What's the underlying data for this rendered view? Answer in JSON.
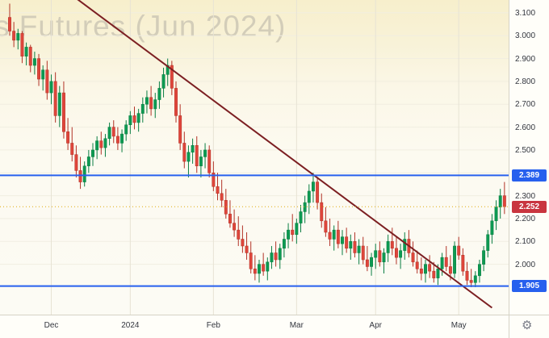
{
  "chart_data": {
    "type": "candlestick",
    "title": "s Futures (Jun 2024)",
    "y_range": [
      1.78,
      3.156
    ],
    "layout": {
      "x_offset": 12,
      "x_step": 5.15,
      "candle_width": 3.4,
      "grid": "on",
      "price_axis_side": "right"
    },
    "x_axis": {
      "ticks": [
        {
          "label": "Dec",
          "index": 10
        },
        {
          "label": "2024",
          "index": 29
        },
        {
          "label": "Feb",
          "index": 49
        },
        {
          "label": "Mar",
          "index": 69
        },
        {
          "label": "Apr",
          "index": 88
        },
        {
          "label": "May",
          "index": 108
        }
      ]
    },
    "y_axis": {
      "ticks": [
        {
          "label": "3.100",
          "value": 3.1
        },
        {
          "label": "3.000",
          "value": 3.0
        },
        {
          "label": "2.900",
          "value": 2.9
        },
        {
          "label": "2.800",
          "value": 2.8
        },
        {
          "label": "2.700",
          "value": 2.7
        },
        {
          "label": "2.600",
          "value": 2.6
        },
        {
          "label": "2.500",
          "value": 2.5
        },
        {
          "label": "2.400",
          "value": 2.4
        },
        {
          "label": "2.300",
          "value": 2.3
        },
        {
          "label": "2.200",
          "value": 2.2
        },
        {
          "label": "2.100",
          "value": 2.1
        },
        {
          "label": "2.000",
          "value": 2.0
        }
      ]
    },
    "levels": [
      {
        "name": "resistance",
        "label": "2.389",
        "value": 2.389
      },
      {
        "name": "support",
        "label": "1.905",
        "value": 1.905
      }
    ],
    "current_price": {
      "label": "2.252",
      "value": 2.252
    },
    "trendline": {
      "from": {
        "index": 15.5,
        "price": 3.17
      },
      "to": {
        "index": 116,
        "price": 1.81
      }
    },
    "candles": [
      [
        3.08,
        3.14,
        3.0,
        3.02
      ],
      [
        3.02,
        3.06,
        2.95,
        2.98
      ],
      [
        2.98,
        3.03,
        2.94,
        3.01
      ],
      [
        3.01,
        3.02,
        2.88,
        2.91
      ],
      [
        2.91,
        2.97,
        2.87,
        2.95
      ],
      [
        2.95,
        2.96,
        2.84,
        2.87
      ],
      [
        2.87,
        2.93,
        2.83,
        2.9
      ],
      [
        2.9,
        2.92,
        2.78,
        2.81
      ],
      [
        2.81,
        2.87,
        2.76,
        2.85
      ],
      [
        2.85,
        2.89,
        2.72,
        2.75
      ],
      [
        2.75,
        2.83,
        2.7,
        2.8
      ],
      [
        2.8,
        2.84,
        2.62,
        2.65
      ],
      [
        2.65,
        2.78,
        2.6,
        2.75
      ],
      [
        2.75,
        2.8,
        2.55,
        2.58
      ],
      [
        2.58,
        2.64,
        2.5,
        2.53
      ],
      [
        2.53,
        2.6,
        2.45,
        2.48
      ],
      [
        2.48,
        2.52,
        2.38,
        2.41
      ],
      [
        2.41,
        2.47,
        2.33,
        2.36
      ],
      [
        2.36,
        2.45,
        2.34,
        2.43
      ],
      [
        2.43,
        2.5,
        2.4,
        2.47
      ],
      [
        2.47,
        2.53,
        2.43,
        2.5
      ],
      [
        2.5,
        2.56,
        2.46,
        2.54
      ],
      [
        2.54,
        2.58,
        2.48,
        2.51
      ],
      [
        2.51,
        2.57,
        2.47,
        2.55
      ],
      [
        2.55,
        2.62,
        2.52,
        2.6
      ],
      [
        2.6,
        2.63,
        2.53,
        2.56
      ],
      [
        2.56,
        2.6,
        2.5,
        2.53
      ],
      [
        2.53,
        2.59,
        2.49,
        2.57
      ],
      [
        2.57,
        2.63,
        2.54,
        2.61
      ],
      [
        2.61,
        2.67,
        2.57,
        2.65
      ],
      [
        2.65,
        2.69,
        2.59,
        2.62
      ],
      [
        2.62,
        2.68,
        2.58,
        2.66
      ],
      [
        2.66,
        2.73,
        2.62,
        2.7
      ],
      [
        2.7,
        2.76,
        2.66,
        2.73
      ],
      [
        2.73,
        2.78,
        2.65,
        2.68
      ],
      [
        2.68,
        2.75,
        2.64,
        2.72
      ],
      [
        2.72,
        2.8,
        2.68,
        2.77
      ],
      [
        2.77,
        2.86,
        2.73,
        2.83
      ],
      [
        2.83,
        2.9,
        2.78,
        2.87
      ],
      [
        2.87,
        2.89,
        2.74,
        2.77
      ],
      [
        2.77,
        2.8,
        2.62,
        2.65
      ],
      [
        2.65,
        2.7,
        2.5,
        2.53
      ],
      [
        2.53,
        2.58,
        2.42,
        2.45
      ],
      [
        2.45,
        2.52,
        2.38,
        2.49
      ],
      [
        2.49,
        2.55,
        2.44,
        2.52
      ],
      [
        2.52,
        2.56,
        2.4,
        2.43
      ],
      [
        2.43,
        2.5,
        2.38,
        2.47
      ],
      [
        2.47,
        2.53,
        2.42,
        2.5
      ],
      [
        2.5,
        2.52,
        2.38,
        2.4
      ],
      [
        2.4,
        2.45,
        2.32,
        2.34
      ],
      [
        2.34,
        2.4,
        2.28,
        2.31
      ],
      [
        2.31,
        2.37,
        2.25,
        2.28
      ],
      [
        2.28,
        2.33,
        2.2,
        2.22
      ],
      [
        2.22,
        2.28,
        2.16,
        2.18
      ],
      [
        2.18,
        2.24,
        2.12,
        2.15
      ],
      [
        2.15,
        2.21,
        2.08,
        2.11
      ],
      [
        2.11,
        2.17,
        2.05,
        2.08
      ],
      [
        2.08,
        2.14,
        2.02,
        2.05
      ],
      [
        2.05,
        2.1,
        1.96,
        1.98
      ],
      [
        1.98,
        2.04,
        1.93,
        1.96
      ],
      [
        1.96,
        2.02,
        1.92,
        2.0
      ],
      [
        2.0,
        2.05,
        1.95,
        1.97
      ],
      [
        1.97,
        2.03,
        1.93,
        2.01
      ],
      [
        2.01,
        2.08,
        1.98,
        2.05
      ],
      [
        2.05,
        2.1,
        1.99,
        2.02
      ],
      [
        2.02,
        2.09,
        1.98,
        2.07
      ],
      [
        2.07,
        2.14,
        2.03,
        2.11
      ],
      [
        2.11,
        2.18,
        2.07,
        2.15
      ],
      [
        2.15,
        2.22,
        2.1,
        2.13
      ],
      [
        2.13,
        2.2,
        2.09,
        2.18
      ],
      [
        2.18,
        2.26,
        2.14,
        2.23
      ],
      [
        2.23,
        2.3,
        2.18,
        2.27
      ],
      [
        2.27,
        2.35,
        2.22,
        2.32
      ],
      [
        2.32,
        2.4,
        2.27,
        2.36
      ],
      [
        2.36,
        2.38,
        2.24,
        2.27
      ],
      [
        2.27,
        2.31,
        2.16,
        2.19
      ],
      [
        2.19,
        2.25,
        2.12,
        2.14
      ],
      [
        2.14,
        2.2,
        2.08,
        2.11
      ],
      [
        2.11,
        2.17,
        2.06,
        2.15
      ],
      [
        2.15,
        2.19,
        2.07,
        2.09
      ],
      [
        2.09,
        2.15,
        2.04,
        2.12
      ],
      [
        2.12,
        2.16,
        2.05,
        2.07
      ],
      [
        2.07,
        2.13,
        2.02,
        2.1
      ],
      [
        2.1,
        2.14,
        2.03,
        2.05
      ],
      [
        2.05,
        2.11,
        2.0,
        2.08
      ],
      [
        2.08,
        2.12,
        2.0,
        2.02
      ],
      [
        2.02,
        2.08,
        1.97,
        1.99
      ],
      [
        1.99,
        2.05,
        1.95,
        2.03
      ],
      [
        2.03,
        2.09,
        1.98,
        2.06
      ],
      [
        2.06,
        2.1,
        1.99,
        2.01
      ],
      [
        2.01,
        2.07,
        1.96,
        2.05
      ],
      [
        2.05,
        2.13,
        2.01,
        2.1
      ],
      [
        2.1,
        2.16,
        2.04,
        2.07
      ],
      [
        2.07,
        2.12,
        2.0,
        2.03
      ],
      [
        2.03,
        2.09,
        1.98,
        2.06
      ],
      [
        2.06,
        2.14,
        2.02,
        2.11
      ],
      [
        2.11,
        2.15,
        2.03,
        2.05
      ],
      [
        2.05,
        2.1,
        1.99,
        2.01
      ],
      [
        2.01,
        2.06,
        1.96,
        1.98
      ],
      [
        1.98,
        2.03,
        1.93,
        1.96
      ],
      [
        1.96,
        2.02,
        1.92,
        2.0
      ],
      [
        2.0,
        2.04,
        1.94,
        1.97
      ],
      [
        1.97,
        2.01,
        1.92,
        1.94
      ],
      [
        1.94,
        2.0,
        1.91,
        1.98
      ],
      [
        1.98,
        2.05,
        1.95,
        2.03
      ],
      [
        2.03,
        2.08,
        1.97,
        1.99
      ],
      [
        1.99,
        2.04,
        1.93,
        1.96
      ],
      [
        1.96,
        2.1,
        1.94,
        2.08
      ],
      [
        2.08,
        2.12,
        2.02,
        2.04
      ],
      [
        2.04,
        2.07,
        1.95,
        1.97
      ],
      [
        1.97,
        2.01,
        1.91,
        1.93
      ],
      [
        1.93,
        1.98,
        1.9,
        1.92
      ],
      [
        1.92,
        1.97,
        1.9,
        1.95
      ],
      [
        1.95,
        2.02,
        1.92,
        2.0
      ],
      [
        2.0,
        2.08,
        1.97,
        2.06
      ],
      [
        2.06,
        2.15,
        2.03,
        2.13
      ],
      [
        2.13,
        2.22,
        2.09,
        2.19
      ],
      [
        2.19,
        2.28,
        2.15,
        2.25
      ],
      [
        2.25,
        2.33,
        2.2,
        2.3
      ],
      [
        2.3,
        2.36,
        2.22,
        2.252
      ]
    ],
    "colors": {
      "up": "#0d9a52",
      "up_border": "#0b7e43",
      "down": "#df453b",
      "down_border": "#b23327",
      "level_line": "#2760ee",
      "level_label_bg": "#2760ee",
      "price_line": "#dfa90c",
      "price_label_bg": "#c9353f",
      "trendline": "#7c1f22",
      "grid_v": "#e7e3d4",
      "grid_h": "#f1eee1"
    }
  },
  "corner": {
    "gear_glyph": "⚙"
  }
}
